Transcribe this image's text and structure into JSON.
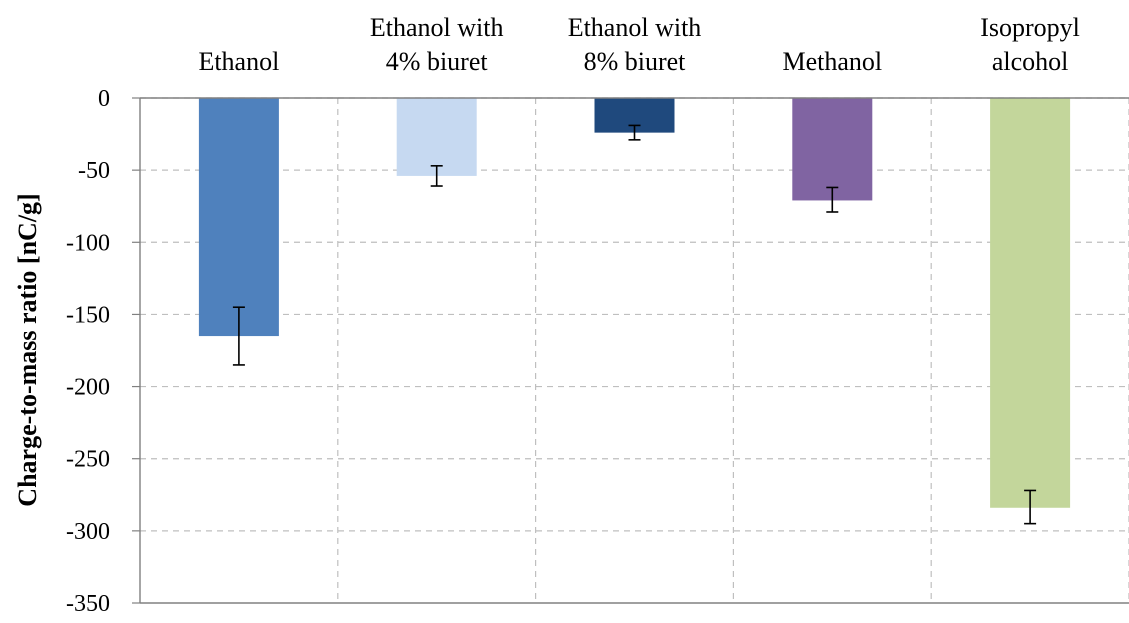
{
  "chart_data": {
    "type": "bar",
    "title": "",
    "xlabel": "",
    "ylabel": "Charge-to-mass ratio [nC/g]",
    "ylim": [
      -350,
      0
    ],
    "yticks": [
      0,
      -50,
      -100,
      -150,
      -200,
      -250,
      -300,
      -350
    ],
    "categories": [
      [
        "Ethanol"
      ],
      [
        "Ethanol with",
        "4% biuret"
      ],
      [
        "Ethanol with",
        "8% biuret"
      ],
      [
        "Methanol"
      ],
      [
        "Isopropyl",
        "alcohol"
      ]
    ],
    "values": [
      -165,
      -54,
      -24,
      -71,
      -284
    ],
    "error_low": [
      -185,
      -61,
      -29,
      -79,
      -295
    ],
    "error_high": [
      -145,
      -47,
      -19,
      -62,
      -272
    ],
    "colors": [
      "#4F81BD",
      "#C6D9F1",
      "#1F497D",
      "#8064A2",
      "#C3D69B"
    ],
    "grid": true,
    "legend": "none"
  }
}
